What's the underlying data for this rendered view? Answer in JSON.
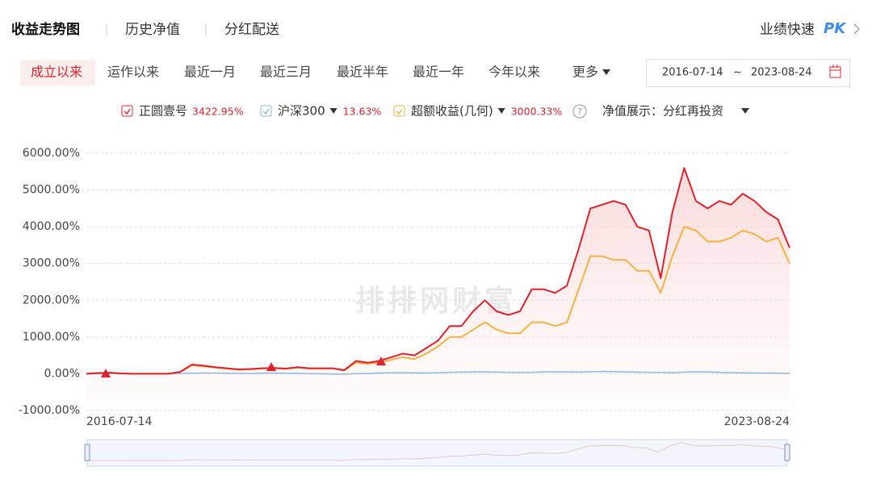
{
  "ui": {
    "tabs": [
      "收益走势图",
      "历史净值",
      "分红配送"
    ],
    "pk_label": "业绩快速",
    "pk": "PK",
    "periods": [
      "成立以来",
      "运作以来",
      "最近一月",
      "最近三月",
      "最近半年",
      "最近一年",
      "今年以来",
      "更多"
    ],
    "date_start": "2016-07-14",
    "date_sep": "~",
    "date_end": "2023-08-24",
    "nav_mode": "净值展示：分红再投资",
    "watermark": "排排网财富"
  },
  "chart_data": {
    "type": "line",
    "categories": [
      "2016-07-14",
      null,
      null,
      null,
      null,
      null,
      null,
      null,
      null,
      null,
      null,
      null,
      null,
      null,
      null,
      null,
      null,
      null,
      null,
      null,
      null,
      null,
      null,
      null,
      null,
      null,
      null,
      null,
      null,
      null,
      null,
      null,
      null,
      null,
      null,
      null,
      null,
      null,
      null,
      null,
      null,
      null,
      null,
      null,
      null,
      null,
      null,
      null,
      null,
      null,
      null,
      null,
      null,
      null,
      null,
      null,
      null,
      null,
      null,
      null,
      "2023-08-24"
    ],
    "series": [
      {
        "name": "正圆壹号",
        "color": "#e0202a",
        "legend_value": "3422.95%",
        "values": [
          0,
          20,
          30,
          10,
          0,
          0,
          0,
          0,
          50,
          250,
          220,
          180,
          150,
          120,
          130,
          150,
          160,
          140,
          180,
          150,
          150,
          150,
          100,
          350,
          300,
          350,
          450,
          550,
          500,
          700,
          900,
          1300,
          1300,
          1700,
          2000,
          1700,
          1600,
          1700,
          2300,
          2300,
          2200,
          2400,
          3400,
          4500,
          4600,
          4700,
          4600,
          4000,
          3900,
          2600,
          4400,
          5600,
          4700,
          4500,
          4700,
          4600,
          4900,
          4700,
          4400,
          4200,
          3422.95
        ]
      },
      {
        "name": "沪深300",
        "color": "#8db7e3",
        "legend_value": "13.63%",
        "values": [
          0,
          5,
          10,
          5,
          0,
          -5,
          0,
          5,
          10,
          15,
          20,
          20,
          15,
          10,
          10,
          15,
          20,
          15,
          10,
          5,
          0,
          -5,
          -10,
          0,
          10,
          20,
          30,
          30,
          25,
          20,
          30,
          40,
          45,
          50,
          55,
          45,
          40,
          35,
          40,
          50,
          55,
          50,
          45,
          55,
          65,
          60,
          50,
          45,
          40,
          35,
          30,
          45,
          55,
          50,
          40,
          30,
          25,
          20,
          20,
          15,
          13.63
        ]
      },
      {
        "name": "超额收益(几何)",
        "color": "#f5b240",
        "legend_value": "3000.33%",
        "values": [
          0,
          20,
          30,
          10,
          0,
          0,
          0,
          0,
          50,
          230,
          200,
          170,
          140,
          110,
          120,
          140,
          150,
          130,
          170,
          140,
          140,
          140,
          90,
          300,
          270,
          300,
          380,
          450,
          400,
          550,
          750,
          1000,
          1000,
          1200,
          1400,
          1200,
          1100,
          1100,
          1400,
          1400,
          1300,
          1400,
          2300,
          3200,
          3200,
          3100,
          3100,
          2800,
          2800,
          2200,
          3200,
          4000,
          3900,
          3600,
          3600,
          3700,
          3900,
          3800,
          3600,
          3700,
          3000.33
        ]
      }
    ],
    "ylim": [
      -1000,
      6000
    ],
    "yticks": [
      {
        "value": -1000,
        "label": "-1000.00%"
      },
      {
        "value": 0,
        "label": "0.00%"
      },
      {
        "value": 1000,
        "label": "1000.00%"
      },
      {
        "value": 2000,
        "label": "2000.00%"
      },
      {
        "value": 3000,
        "label": "3000.00%"
      },
      {
        "value": 4000,
        "label": "4000.00%"
      },
      {
        "value": 5000,
        "label": "5000.00%"
      },
      {
        "value": 6000,
        "label": "6000.00%"
      }
    ],
    "grid": true
  }
}
